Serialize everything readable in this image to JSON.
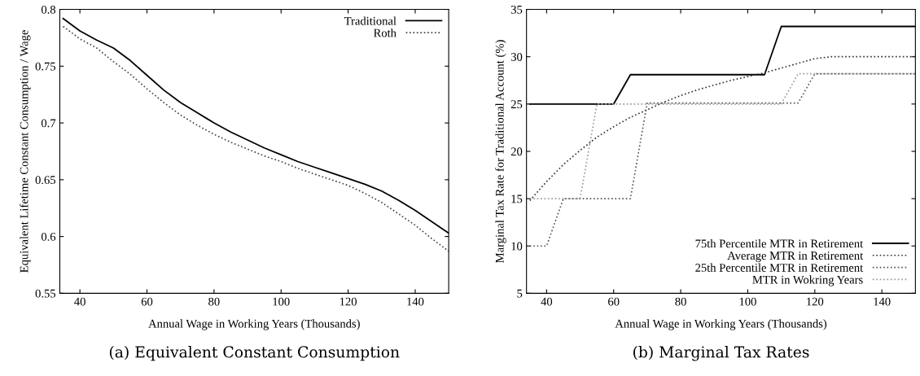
{
  "chart_data": [
    {
      "type": "line",
      "title": "(a) Equivalent Constant Consumption",
      "xlabel": "Annual Wage in Working Years (Thousands)",
      "ylabel": "Equivalent Lifetime Constant Consumption / Wage",
      "x": [
        35,
        40,
        45,
        50,
        55,
        60,
        65,
        70,
        75,
        80,
        85,
        90,
        95,
        100,
        105,
        110,
        115,
        120,
        125,
        130,
        135,
        140,
        145,
        150
      ],
      "series": [
        {
          "name": "Traditional",
          "color": "#000000",
          "line_style": "solid",
          "values": [
            0.792,
            0.781,
            0.773,
            0.766,
            0.755,
            0.742,
            0.729,
            0.718,
            0.709,
            0.7,
            0.692,
            0.685,
            0.678,
            0.672,
            0.666,
            0.661,
            0.656,
            0.651,
            0.646,
            0.64,
            0.632,
            0.623,
            0.613,
            0.603
          ]
        },
        {
          "name": "Roth",
          "color": "#444444",
          "line_style": "dotted",
          "values": [
            0.785,
            0.774,
            0.766,
            0.754,
            0.743,
            0.73,
            0.718,
            0.707,
            0.698,
            0.69,
            0.683,
            0.677,
            0.671,
            0.666,
            0.66,
            0.655,
            0.65,
            0.645,
            0.638,
            0.63,
            0.62,
            0.61,
            0.598,
            0.587
          ]
        }
      ],
      "xlim": [
        34,
        150
      ],
      "xticks": [
        40,
        60,
        80,
        100,
        120,
        140
      ],
      "ylim": [
        0.55,
        0.8
      ],
      "yticks": [
        0.55,
        0.6,
        0.65,
        0.7,
        0.75,
        0.8
      ],
      "legend": "top right",
      "grid": false,
      "marker": "none"
    },
    {
      "type": "line",
      "title": "(b) Marginal Tax Rates",
      "xlabel": "Annual Wage in Working Years (Thousands)",
      "ylabel": "Marginal Tax Rate for Traditional Account (%)",
      "series": [
        {
          "name": "75th Percentile MTR in Retirement",
          "color": "#000000",
          "line_style": "solid",
          "x": [
            35,
            60,
            65,
            105,
            110,
            150
          ],
          "values": [
            25,
            25,
            28.1,
            28.1,
            33.2,
            33.2
          ]
        },
        {
          "name": "Average MTR in Retirement",
          "color": "#333333",
          "line_style": "dotted",
          "x": [
            35,
            40,
            45,
            50,
            55,
            60,
            65,
            70,
            75,
            80,
            85,
            90,
            95,
            100,
            105,
            110,
            115,
            120,
            125,
            150
          ],
          "values": [
            14.8,
            16.8,
            18.6,
            20.1,
            21.5,
            22.6,
            23.6,
            24.4,
            25.2,
            25.9,
            26.5,
            27.0,
            27.5,
            27.9,
            28.3,
            28.8,
            29.3,
            29.8,
            30,
            30
          ]
        },
        {
          "name": "25th Percentile MTR in Retirement",
          "color": "#555555",
          "line_style": "dotted",
          "x": [
            35,
            40,
            45,
            65,
            70,
            115,
            120,
            150
          ],
          "values": [
            10,
            10,
            15,
            15,
            25.1,
            25.1,
            28.2,
            28.2
          ]
        },
        {
          "name": "MTR in Wokring Years",
          "color": "#999999",
          "line_style": "dotted",
          "x": [
            35,
            50,
            55,
            110,
            115,
            150
          ],
          "values": [
            15,
            15,
            25,
            25,
            28.2,
            28.2
          ]
        }
      ],
      "xlim": [
        34,
        150
      ],
      "xticks": [
        40,
        60,
        80,
        100,
        120,
        140
      ],
      "ylim": [
        5,
        35
      ],
      "yticks": [
        5,
        10,
        15,
        20,
        25,
        30,
        35
      ],
      "legend": "bottom right",
      "grid": false,
      "marker": "none"
    }
  ]
}
